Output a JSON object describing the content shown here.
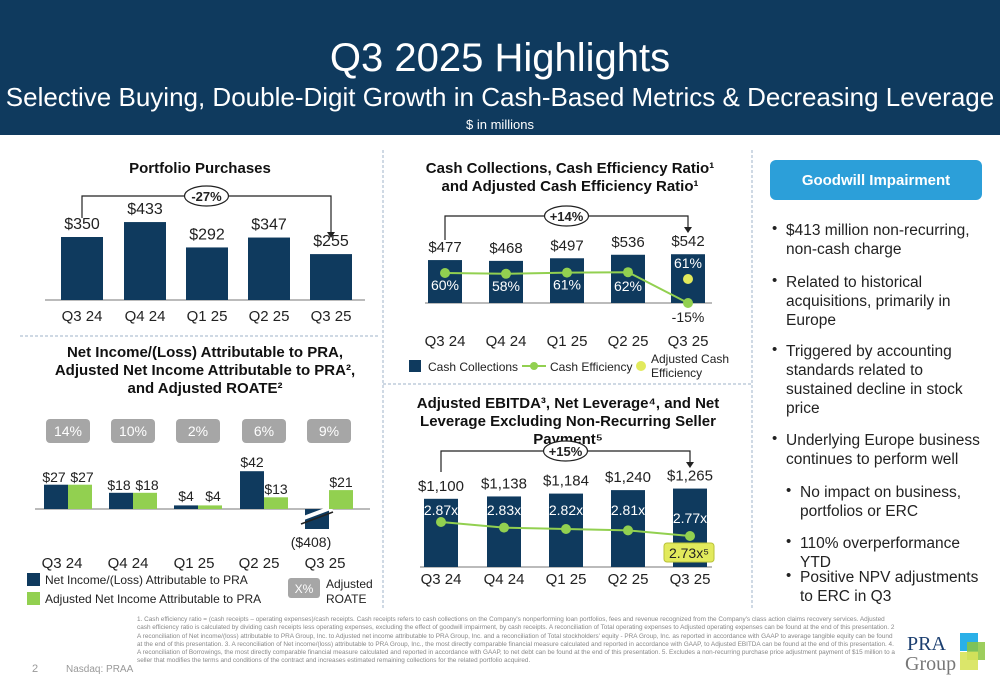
{
  "header": {
    "title": "Q3 2025 Highlights",
    "subtitle": "Selective Buying, Double-Digit Growth in Cash-Based Metrics & Decreasing Leverage",
    "units": "$ in millions"
  },
  "colors": {
    "navy": "#0f3a5e",
    "green": "#92d050",
    "yellow": "#e2ea5c",
    "accent": "#2c9fd9",
    "pill_gray": "#a6a6a6"
  },
  "chart_data": [
    {
      "type": "bar",
      "title": "Portfolio Purchases",
      "categories": [
        "Q3 24",
        "Q4 24",
        "Q1 25",
        "Q2 25",
        "Q3 25"
      ],
      "values": [
        350,
        433,
        292,
        347,
        255
      ],
      "labels": [
        "$350",
        "$433",
        "$292",
        "$347",
        "$255"
      ],
      "change_label": "-27%"
    },
    {
      "type": "bar",
      "title": "Cash Collections, Cash Efficiency Ratio¹ and Adjusted Cash Efficiency Ratio¹",
      "categories": [
        "Q3 24",
        "Q4 24",
        "Q1 25",
        "Q2 25",
        "Q3 25"
      ],
      "series": [
        {
          "name": "Cash Collections",
          "type": "bar",
          "values": [
            477,
            468,
            497,
            536,
            542
          ],
          "labels": [
            "$477",
            "$468",
            "$497",
            "$536",
            "$542"
          ]
        },
        {
          "name": "Cash Efficiency",
          "type": "line",
          "values": [
            60,
            58,
            61,
            62,
            -15
          ],
          "labels": [
            "60%",
            "58%",
            "61%",
            "62%",
            "-15%"
          ]
        },
        {
          "name": "Adjusted Cash Efficiency",
          "type": "scatter",
          "values": [
            null,
            null,
            null,
            null,
            61
          ],
          "labels": [
            "",
            "",
            "",
            "",
            "61%"
          ]
        }
      ],
      "change_label": "+14%",
      "legend": [
        "Cash Collections",
        "Cash Efficiency",
        "Adjusted Cash Efficiency"
      ]
    },
    {
      "type": "bar",
      "title": "Net Income/(Loss) Attributable to PRA, Adjusted Net Income Attributable to PRA², and Adjusted ROATE²",
      "categories": [
        "Q3 24",
        "Q4 24",
        "Q1 25",
        "Q2 25",
        "Q3 25"
      ],
      "series": [
        {
          "name": "Net Income/(Loss) Attributable to PRA",
          "values": [
            27,
            18,
            4,
            42,
            -408
          ],
          "labels": [
            "$27",
            "$18",
            "$4",
            "$42",
            "($408)"
          ]
        },
        {
          "name": "Adjusted Net Income Attributable to PRA",
          "values": [
            27,
            18,
            4,
            13,
            21
          ],
          "labels": [
            "$27",
            "$18",
            "$4",
            "$13",
            "$21"
          ]
        }
      ],
      "roate": [
        "14%",
        "10%",
        "2%",
        "6%",
        "9%"
      ],
      "roate_legend": {
        "pill": "X%",
        "label": "Adjusted ROATE"
      }
    },
    {
      "type": "bar",
      "title": "Adjusted EBITDA³, Net Leverage⁴, and Net Leverage Excluding Non-Recurring Seller Payment⁵",
      "categories": [
        "Q3 24",
        "Q4 24",
        "Q1 25",
        "Q2 25",
        "Q3 25"
      ],
      "series": [
        {
          "name": "Adjusted EBITDA",
          "type": "bar",
          "values": [
            1100,
            1138,
            1184,
            1240,
            1265
          ],
          "labels": [
            "$1,100",
            "$1,138",
            "$1,184",
            "$1,240",
            "$1,265"
          ]
        },
        {
          "name": "Net Leverage",
          "type": "line",
          "values": [
            2.87,
            2.83,
            2.82,
            2.81,
            2.77
          ],
          "labels": [
            "2.87x",
            "2.83x",
            "2.82x",
            "2.81x",
            "2.77x"
          ]
        }
      ],
      "excl_label": "2.73x⁵",
      "change_label": "+15%"
    }
  ],
  "goodwill": {
    "title": "Goodwill Impairment",
    "bullets": [
      "$413 million non-recurring, non-cash charge",
      "Related to historical acquisitions, primarily in Europe",
      "Triggered by accounting standards related to sustained decline in stock price",
      "Underlying Europe business continues to perform well"
    ],
    "sub_bullets": [
      "No impact on business, portfolios or ERC",
      "110% overperformance YTD",
      "Positive NPV adjustments to ERC in Q3"
    ]
  },
  "footnote": "1. Cash efficiency ratio = (cash receipts – operating expenses)/cash receipts. Cash receipts refers to cash collections on the Company's nonperforming loan portfolios, fees and revenue recognized from the Company's class action claims recovery services. Adjusted cash efficiency ratio is calculated by dividing cash receipts less operating expenses, excluding the effect of goodwill impairment, by cash receipts. A reconciliation of Total operating expenses to Adjusted operating expenses can be found at the end of this presentation. 2 A reconciliation of Net income/(loss) attributable to PRA Group, Inc. to Adjusted net income attributable to PRA Group, Inc. and a reconciliation of Total stockholders' equity - PRA Group, Inc. as reported in accordance with GAAP to average tangible equity can be found at the end of this presentation.  3. A reconciliation of Net income/(loss) attributable to PRA Group, Inc., the most directly comparable financial measure calculated and reported in accordance with GAAP, to Adjusted EBITDA can be found at the end of this presentation. 4. A reconciliation of Borrowings, the most directly comparable financial measure calculated and reported in accordance with GAAP, to net debt can be found at the end of this presentation. 5. Excludes a non-recurring purchase price adjustment payment of $15 million to a seller that modifies the terms and conditions of the contract and increases estimated remaining collections for the related portfolio acquired.",
  "footer": {
    "page": "2",
    "ticker": "Nasdaq: PRAA",
    "logo_text": "PRA Group"
  }
}
